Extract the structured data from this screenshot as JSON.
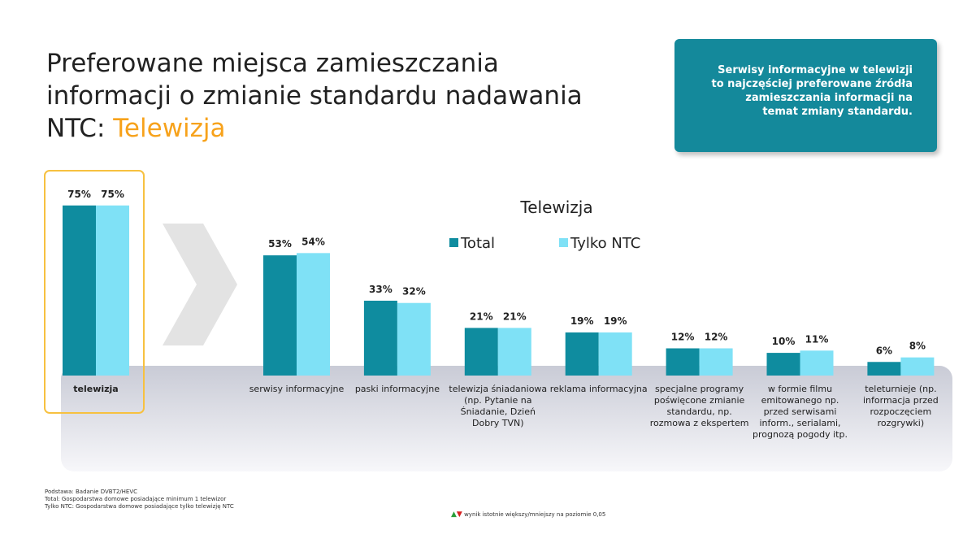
{
  "header": {
    "title": "Preferowane miejsca zamieszczania informacji o zmianie standardu nadawania NTC:",
    "highlight": "Telewizja"
  },
  "callout": "Serwisy informacyjne w telewizji to najczęściej preferowane źródła zamieszczania informacji na temat zmiany standardu.",
  "footnotes": [
    "Podstawa: Badanie DVBT2/HEVC",
    "Total: Gospodarstwa domowe posiadające minimum 1 telewizor",
    "Tylko NTC: Gospodarstwa domowe posiadające tylko telewizję NTC"
  ],
  "significance_note": "wynik istotnie większy/mniejszy na poziomie 0,05",
  "chart_data": {
    "type": "bar",
    "title": "Telewizja",
    "categories": [
      "telewizja",
      "serwisy informacyjne",
      "paski informacyjne",
      "telewizja śniadaniowa (np. Pytanie na Śniadanie, Dzień Dobry TVN)",
      "reklama informacyjna",
      "specjalne programy poświęcone zmianie standardu, np. rozmowa z ekspertem",
      "w formie filmu emitowanego np. przed serwisami inform., serialami, prognozą pogody itp.",
      "teleturnieje (np. informacja przed rozpoczęciem rozgrywki)"
    ],
    "series": [
      {
        "name": "Total",
        "color": "#0f8c9f",
        "values": [
          75,
          53,
          33,
          21,
          19,
          12,
          10,
          6
        ],
        "value_labels": [
          "75%",
          "53%",
          "33%",
          "21%",
          "19%",
          "12%",
          "10%",
          "6%"
        ]
      },
      {
        "name": "Tylko NTC",
        "color": "#7fe1f6",
        "values": [
          75,
          54,
          32,
          21,
          19,
          12,
          11,
          8
        ],
        "value_labels": [
          "75%",
          "54%",
          "32%",
          "21%",
          "19%",
          "12%",
          "11%",
          "8%"
        ]
      }
    ]
  }
}
